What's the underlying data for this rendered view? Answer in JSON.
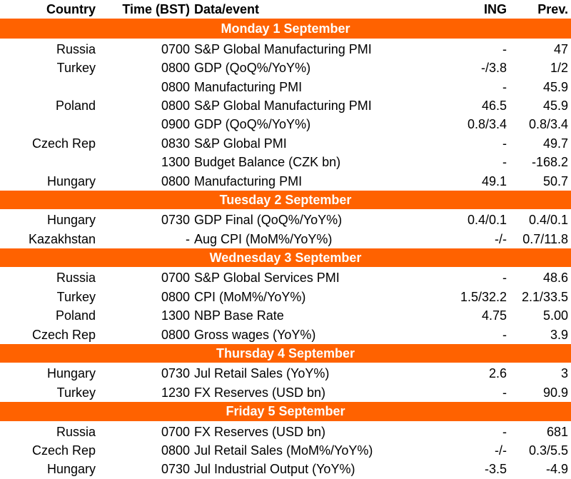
{
  "header": {
    "country": "Country",
    "time": "Time (BST)",
    "event": "Data/event",
    "ing": "ING",
    "prev": "Prev."
  },
  "days": [
    {
      "title": "Monday 1 September",
      "rows": [
        {
          "country": "Russia",
          "time": "0700",
          "event": "S&P Global Manufacturing PMI",
          "ing": "-",
          "prev": "47"
        },
        {
          "country": "Turkey",
          "time": "0800",
          "event": "GDP (QoQ%/YoY%)",
          "ing": "-/3.8",
          "prev": "1/2"
        },
        {
          "country": "",
          "time": "0800",
          "event": "Manufacturing PMI",
          "ing": "-",
          "prev": "45.9"
        },
        {
          "country": "Poland",
          "time": "0800",
          "event": "S&P Global Manufacturing PMI",
          "ing": "46.5",
          "prev": "45.9"
        },
        {
          "country": "",
          "time": "0900",
          "event": "GDP (QoQ%/YoY%)",
          "ing": "0.8/3.4",
          "prev": "0.8/3.4"
        },
        {
          "country": "Czech Rep",
          "time": "0830",
          "event": "S&P Global PMI",
          "ing": "-",
          "prev": "49.7"
        },
        {
          "country": "",
          "time": "1300",
          "event": "Budget Balance (CZK bn)",
          "ing": "-",
          "prev": "-168.2"
        },
        {
          "country": "Hungary",
          "time": "0800",
          "event": "Manufacturing PMI",
          "ing": "49.1",
          "prev": "50.7"
        }
      ]
    },
    {
      "title": "Tuesday 2 September",
      "rows": [
        {
          "country": "Hungary",
          "time": "0730",
          "event": "GDP Final (QoQ%/YoY%)",
          "ing": "0.4/0.1",
          "prev": "0.4/0.1"
        },
        {
          "country": "Kazakhstan",
          "time": "-",
          "event": "Aug CPI (MoM%/YoY%)",
          "ing": "-/-",
          "prev": "0.7/11.8"
        }
      ]
    },
    {
      "title": "Wednesday 3 September",
      "rows": [
        {
          "country": "Russia",
          "time": "0700",
          "event": "S&P Global Services PMI",
          "ing": "-",
          "prev": "48.6"
        },
        {
          "country": "Turkey",
          "time": "0800",
          "event": "CPI (MoM%/YoY%)",
          "ing": "1.5/32.2",
          "prev": "2.1/33.5"
        },
        {
          "country": "Poland",
          "time": "1300",
          "event": "NBP Base Rate",
          "ing": "4.75",
          "prev": "5.00"
        },
        {
          "country": "Czech Rep",
          "time": "0800",
          "event": "Gross wages (YoY%)",
          "ing": "-",
          "prev": "3.9"
        }
      ]
    },
    {
      "title": "Thursday 4 September",
      "rows": [
        {
          "country": "Hungary",
          "time": "0730",
          "event": "Jul Retail Sales (YoY%)",
          "ing": "2.6",
          "prev": "3"
        },
        {
          "country": "Turkey",
          "time": "1230",
          "event": "FX Reserves (USD bn)",
          "ing": "-",
          "prev": "90.9"
        }
      ]
    },
    {
      "title": "Friday 5 September",
      "rows": [
        {
          "country": "Russia",
          "time": "0700",
          "event": "FX Reserves (USD bn)",
          "ing": "-",
          "prev": "681"
        },
        {
          "country": "Czech Rep",
          "time": "0800",
          "event": "Jul Retail Sales (MoM%/YoY%)",
          "ing": "-/-",
          "prev": "0.3/5.5"
        },
        {
          "country": "Hungary",
          "time": "0730",
          "event": "Jul Industrial Output (YoY%)",
          "ing": "-3.5",
          "prev": "-4.9"
        }
      ]
    }
  ],
  "colors": {
    "accent": "#ff6200",
    "day_text": "#ffffff"
  }
}
